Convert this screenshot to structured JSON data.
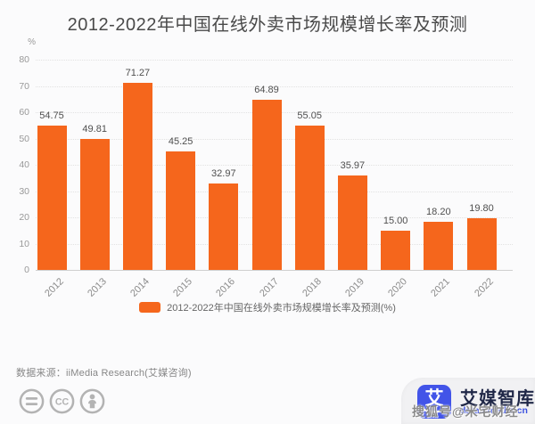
{
  "title": "2012-2022年中国在线外卖市场规模增长率及预测",
  "chart_data": {
    "type": "bar",
    "title": "2012-2022年中国在线外卖市场规模增长率及预测",
    "categories": [
      "2012",
      "2013",
      "2014",
      "2015",
      "2016",
      "2017",
      "2018",
      "2019",
      "2020",
      "2021",
      "2022"
    ],
    "values": [
      54.75,
      49.81,
      71.27,
      45.25,
      32.97,
      64.89,
      55.05,
      35.97,
      15.0,
      18.2,
      19.8
    ],
    "value_labels": [
      "54.75",
      "49.81",
      "71.27",
      "45.25",
      "32.97",
      "64.89",
      "55.05",
      "35.97",
      "15.00",
      "18.20",
      "19.80"
    ],
    "xlabel": "",
    "ylabel": "%",
    "ylim": [
      0,
      80
    ],
    "yticks": [
      0,
      10,
      20,
      30,
      40,
      50,
      60,
      70,
      80
    ],
    "grid": "horizontal-dotted",
    "bar_color": "#F5661C",
    "legend": [
      "2012-2022年中国在线外卖市场规模增长率及预测(%)"
    ],
    "legend_position": "bottom"
  },
  "footer": {
    "source_label": "数据来源：iiMedia Research(艾媒咨询)",
    "license_icons": [
      "equals-icon",
      "cc-icon",
      "person-icon"
    ]
  },
  "branding": {
    "logo_glyph": "艾",
    "brand_name": "艾媒智库",
    "brand_url": "data.iimedia.cn",
    "logo_color": "#4254E8"
  },
  "watermark": "搜狐号@米宅财经",
  "colors": {
    "bar": "#F5661C",
    "title_text": "#4A4A4A",
    "axis_text": "#999999",
    "gridline": "#E2E2E2",
    "brand_blue": "#4254E8",
    "brand_navy": "#1F2747"
  }
}
